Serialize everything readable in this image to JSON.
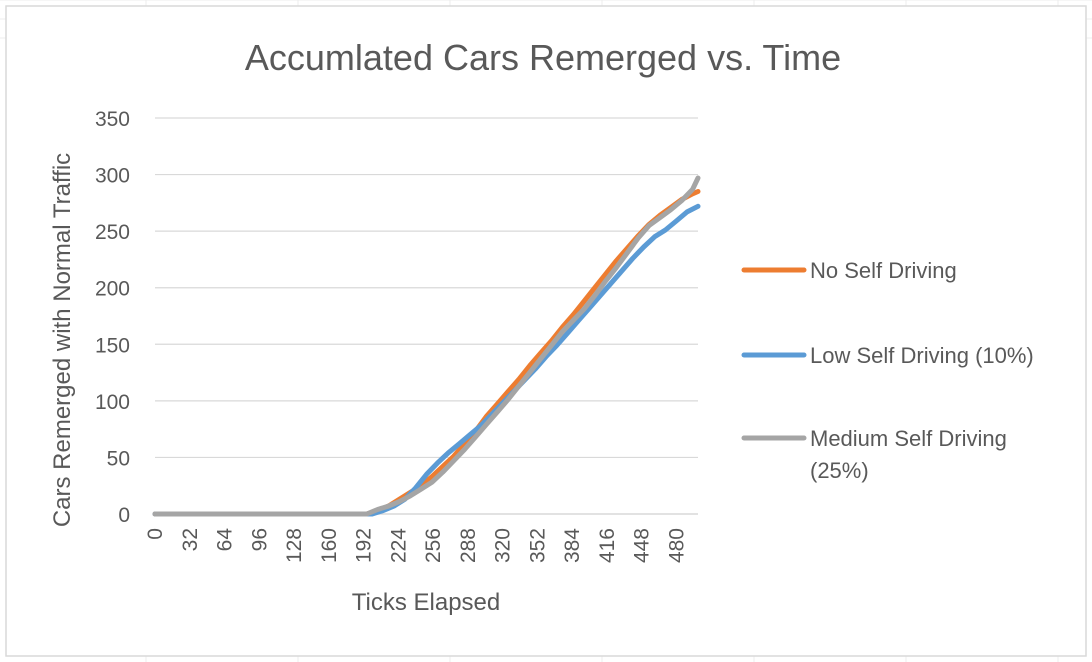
{
  "chart_data": {
    "type": "line",
    "title": "Accumlated Cars Remerged vs. Time",
    "xlabel": "Ticks Elapsed",
    "ylabel": "Cars Remerged with Normal Traffic",
    "xlim": [
      0,
      500
    ],
    "ylim": [
      0,
      350
    ],
    "x_ticks": [
      "0",
      "32",
      "64",
      "96",
      "128",
      "160",
      "192",
      "224",
      "256",
      "288",
      "320",
      "352",
      "384",
      "416",
      "448",
      "480"
    ],
    "y_ticks": [
      "0",
      "50",
      "100",
      "150",
      "200",
      "250",
      "300",
      "350"
    ],
    "grid": "horizontal",
    "legend_position": "right",
    "series": [
      {
        "name": "No Self Driving",
        "color": "#ED7D31",
        "x": [
          0,
          195,
          205,
          215,
          225,
          235,
          245,
          255,
          265,
          275,
          285,
          295,
          305,
          315,
          325,
          335,
          345,
          355,
          365,
          375,
          385,
          395,
          405,
          415,
          425,
          435,
          445,
          455,
          465,
          475,
          485,
          495,
          500
        ],
        "y": [
          0,
          0,
          3,
          7,
          13,
          19,
          25,
          33,
          42,
          51,
          62,
          73,
          86,
          97,
          108,
          119,
          131,
          142,
          153,
          165,
          176,
          188,
          200,
          212,
          224,
          235,
          246,
          256,
          264,
          271,
          278,
          283,
          285
        ]
      },
      {
        "name": "Low Self Driving (10%)",
        "color": "#5B9BD5",
        "x": [
          0,
          200,
          210,
          220,
          230,
          240,
          250,
          260,
          270,
          280,
          290,
          300,
          310,
          320,
          330,
          340,
          350,
          360,
          370,
          380,
          390,
          400,
          410,
          420,
          430,
          440,
          450,
          460,
          470,
          480,
          490,
          500
        ],
        "y": [
          0,
          0,
          3,
          7,
          13,
          23,
          35,
          45,
          54,
          62,
          70,
          78,
          88,
          98,
          108,
          118,
          128,
          139,
          149,
          160,
          171,
          182,
          193,
          204,
          215,
          226,
          236,
          245,
          251,
          259,
          267,
          272
        ]
      },
      {
        "name": "Medium Self Driving (25%)",
        "color": "#A5A5A5",
        "x": [
          0,
          195,
          205,
          215,
          225,
          235,
          245,
          255,
          265,
          275,
          285,
          295,
          305,
          315,
          325,
          335,
          345,
          355,
          365,
          375,
          385,
          395,
          405,
          415,
          425,
          435,
          445,
          455,
          465,
          475,
          485,
          495,
          500
        ],
        "y": [
          0,
          0,
          4,
          7,
          11,
          16,
          22,
          28,
          37,
          47,
          57,
          68,
          79,
          90,
          101,
          113,
          125,
          137,
          149,
          161,
          171,
          181,
          193,
          206,
          218,
          231,
          244,
          255,
          262,
          269,
          277,
          287,
          297
        ]
      }
    ]
  }
}
